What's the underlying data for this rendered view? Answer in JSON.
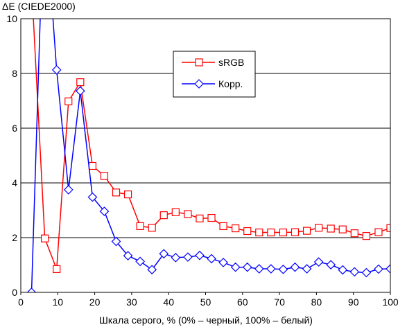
{
  "chart_data": {
    "type": "line",
    "title": "",
    "ylabel": "ΔE (CIEDE2000)",
    "xlabel": "Шкала серого, % (0% – черный, 100% – белый)",
    "xlim": [
      0,
      100
    ],
    "ylim": [
      0,
      10
    ],
    "x_ticks": [
      "0",
      "10",
      "20",
      "30",
      "40",
      "50",
      "60",
      "70",
      "80",
      "90",
      "100"
    ],
    "y_ticks": [
      "0",
      "2",
      "4",
      "6",
      "8",
      "10"
    ],
    "grid": "horizontal",
    "legend_position": "top-right",
    "series": [
      {
        "name": "sRGB",
        "color": "#ff0000",
        "marker": "square",
        "x": [
          3.2,
          6.5,
          9.7,
          12.9,
          16.1,
          19.4,
          22.6,
          25.8,
          29.0,
          32.3,
          35.5,
          38.7,
          41.9,
          45.2,
          48.4,
          51.6,
          54.8,
          58.1,
          61.3,
          64.5,
          67.7,
          71.0,
          74.2,
          77.4,
          80.6,
          83.9,
          87.1,
          90.3,
          93.5,
          96.8,
          100.0
        ],
        "y": [
          10.5,
          1.97,
          0.85,
          6.98,
          7.68,
          4.62,
          4.25,
          3.65,
          3.58,
          2.42,
          2.36,
          2.82,
          2.93,
          2.86,
          2.7,
          2.72,
          2.42,
          2.34,
          2.24,
          2.19,
          2.19,
          2.19,
          2.2,
          2.25,
          2.36,
          2.33,
          2.3,
          2.16,
          2.06,
          2.2,
          2.35
        ]
      },
      {
        "name": "Корр.",
        "color": "#0000ff",
        "marker": "diamond",
        "x": [
          2.9,
          6.3,
          9.7,
          12.9,
          16.1,
          19.4,
          22.6,
          25.8,
          29.0,
          32.3,
          35.5,
          38.7,
          41.9,
          45.2,
          48.4,
          51.6,
          54.8,
          58.1,
          61.3,
          64.5,
          67.7,
          71.0,
          74.2,
          77.4,
          80.6,
          83.9,
          87.1,
          90.3,
          93.5,
          96.8,
          100.0
        ],
        "y": [
          0.0,
          14.5,
          8.13,
          3.75,
          7.36,
          3.48,
          2.96,
          1.86,
          1.34,
          1.13,
          0.83,
          1.41,
          1.27,
          1.29,
          1.35,
          1.23,
          1.09,
          0.92,
          0.92,
          0.86,
          0.86,
          0.84,
          0.92,
          0.86,
          1.11,
          1.01,
          0.82,
          0.75,
          0.72,
          0.85,
          0.86
        ]
      }
    ]
  }
}
